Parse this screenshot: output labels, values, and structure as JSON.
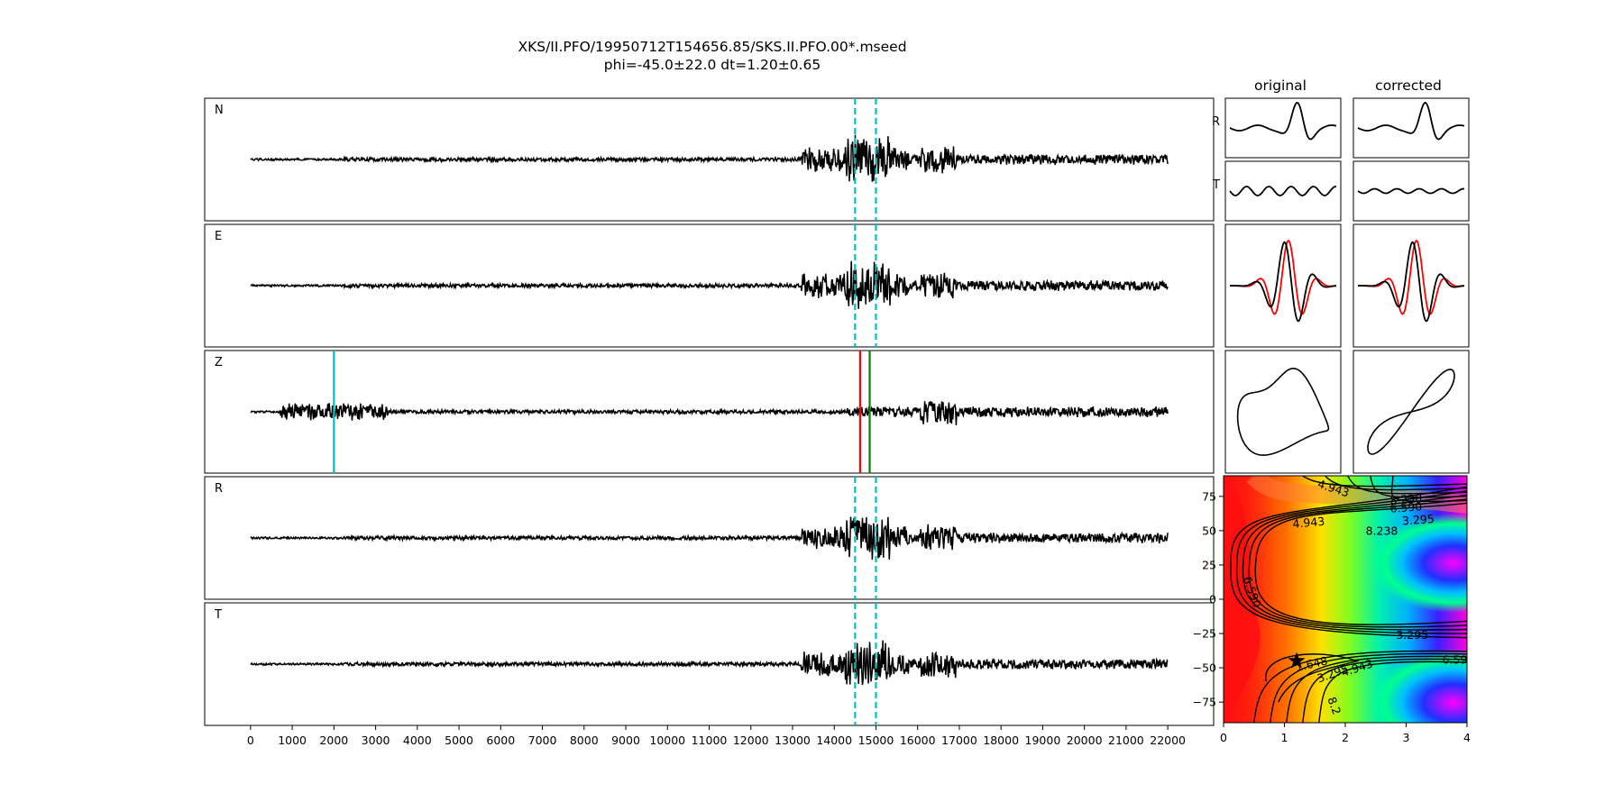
{
  "title": {
    "line1": "XKS/II.PFO/19950712T154656.85/SKS.II.PFO.00*.mseed",
    "line2": "phi=-45.0±22.0 dt=1.20±0.65"
  },
  "colors": {
    "trace": "#000000",
    "window_marker": "#00bfbf",
    "p_marker": "#00bfbf",
    "red_marker": "#ff0000",
    "green_marker": "#008000",
    "comparison_trace": "#ff0000"
  },
  "chart_data": [
    {
      "type": "line",
      "panel": "waveforms",
      "panel_labels": [
        "N",
        "E",
        "Z",
        "R",
        "T"
      ],
      "x_ticks": [
        0,
        1000,
        2000,
        3000,
        4000,
        5000,
        6000,
        7000,
        8000,
        9000,
        10000,
        11000,
        12000,
        13000,
        14000,
        15000,
        16000,
        17000,
        18000,
        19000,
        20000,
        21000,
        22000
      ],
      "xlim": [
        -1100,
        23100
      ],
      "trace_range": [
        0,
        22000
      ],
      "window_markers": [
        14500,
        15000
      ],
      "z_markers": [
        {
          "x": 2000,
          "color": "#00bfbf"
        },
        {
          "x": 14620,
          "color": "#ff0000"
        },
        {
          "x": 14850,
          "color": "#008000"
        }
      ]
    },
    {
      "type": "line",
      "panel": "particle_motion",
      "column_titles": [
        "original",
        "corrected"
      ],
      "row_labels": [
        "R",
        "T"
      ]
    },
    {
      "type": "heatmap",
      "panel": "error_surface",
      "x_ticks": [
        0,
        1,
        2,
        3,
        4
      ],
      "y_ticks": [
        75,
        50,
        25,
        0,
        -25,
        -50,
        -75
      ],
      "xlim": [
        0,
        4
      ],
      "ylim": [
        -90,
        90
      ],
      "best_fit": {
        "dt": 1.2,
        "phi": -45.0
      },
      "contour_labels": [
        "4.943",
        "8.238",
        "6.590",
        "3.295",
        "4.943",
        "8.238",
        "6.590",
        "3.295",
        "1.648",
        "3.295",
        "4.943",
        "6.59",
        "8.2"
      ]
    }
  ]
}
